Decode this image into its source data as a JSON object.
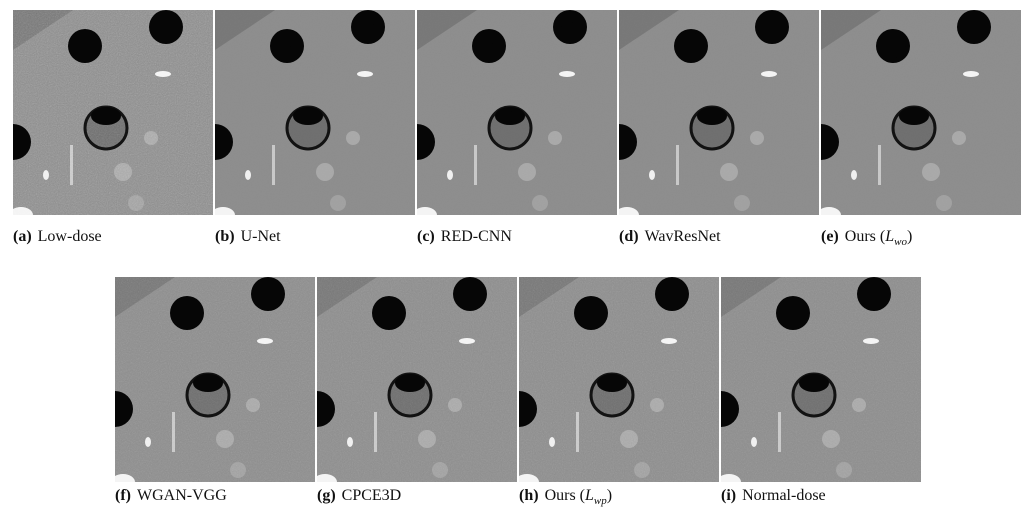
{
  "figure": {
    "panels": [
      {
        "label": "(a)",
        "text": "Low-dose"
      },
      {
        "label": "(b)",
        "text": "U-Net"
      },
      {
        "label": "(c)",
        "text": "RED-CNN"
      },
      {
        "label": "(d)",
        "text": "WavResNet"
      },
      {
        "label": "(e)",
        "text": "Ours",
        "math": {
          "base": "L",
          "sub": "wo"
        }
      },
      {
        "label": "(f)",
        "text": "WGAN-VGG"
      },
      {
        "label": "(g)",
        "text": "CPCE3D"
      },
      {
        "label": "(h)",
        "text": "Ours",
        "math": {
          "base": "L",
          "sub": "wp"
        }
      },
      {
        "label": "(i)",
        "text": "Normal-dose"
      }
    ]
  }
}
